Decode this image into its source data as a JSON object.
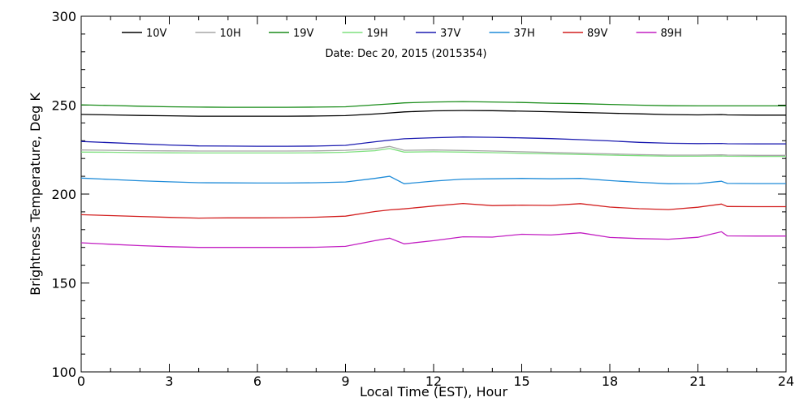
{
  "chart_data": {
    "type": "line",
    "annotation": "Date: Dec 20, 2015 (2015354)",
    "xlabel": "Local Time (EST), Hour",
    "ylabel": "Brightness Temperature, Deg K",
    "xlim": [
      0,
      24
    ],
    "ylim": [
      100,
      300
    ],
    "xticks": [
      "0",
      "3",
      "6",
      "9",
      "12",
      "15",
      "18",
      "21",
      "24"
    ],
    "yticks": [
      "100",
      "150",
      "200",
      "250",
      "300"
    ],
    "grid": false,
    "legend_position": "top",
    "x": [
      0,
      1,
      2,
      3,
      4,
      5,
      6,
      7,
      8,
      9,
      10,
      10.5,
      11,
      12,
      13,
      14,
      15,
      16,
      17,
      18,
      19,
      20,
      21,
      21.8,
      22,
      23,
      24
    ],
    "series": [
      {
        "name": "10V",
        "color": "#000000",
        "values": [
          244.8,
          244.5,
          244.2,
          244.0,
          243.8,
          243.8,
          243.8,
          243.8,
          243.9,
          244.1,
          245.0,
          245.6,
          246.2,
          246.8,
          247.0,
          246.9,
          246.6,
          246.3,
          245.9,
          245.5,
          245.1,
          244.7,
          244.5,
          244.7,
          244.5,
          244.4,
          244.4
        ]
      },
      {
        "name": "10H",
        "color": "#a6a6a6",
        "values": [
          224.8,
          224.6,
          224.4,
          224.3,
          224.2,
          224.2,
          224.2,
          224.2,
          224.3,
          224.6,
          225.5,
          226.8,
          224.6,
          224.8,
          224.5,
          224.2,
          223.8,
          223.4,
          223.0,
          222.6,
          222.2,
          221.9,
          221.9,
          222.1,
          221.9,
          221.8,
          221.8
        ]
      },
      {
        "name": "19V",
        "color": "#1a8c1a",
        "values": [
          250.2,
          249.8,
          249.4,
          249.1,
          248.9,
          248.8,
          248.8,
          248.8,
          248.9,
          249.1,
          250.2,
          250.7,
          251.3,
          251.8,
          252.0,
          251.8,
          251.5,
          251.1,
          250.8,
          250.4,
          250.0,
          249.7,
          249.6,
          249.6,
          249.6,
          249.6,
          249.6
        ]
      },
      {
        "name": "19H",
        "color": "#7fe07f",
        "values": [
          223.6,
          223.5,
          223.3,
          223.2,
          223.1,
          223.1,
          223.1,
          223.1,
          223.2,
          223.5,
          224.4,
          225.6,
          223.6,
          223.8,
          223.6,
          223.3,
          222.9,
          222.6,
          222.3,
          221.9,
          221.6,
          221.3,
          221.3,
          221.4,
          221.3,
          221.2,
          221.2
        ]
      },
      {
        "name": "37V",
        "color": "#1c1cb0",
        "values": [
          229.6,
          228.9,
          228.2,
          227.6,
          227.1,
          227.0,
          226.9,
          226.9,
          227.0,
          227.4,
          229.4,
          230.3,
          231.1,
          231.7,
          232.1,
          231.9,
          231.6,
          231.2,
          230.6,
          229.9,
          229.1,
          228.6,
          228.4,
          228.5,
          228.3,
          228.2,
          228.2
        ]
      },
      {
        "name": "37H",
        "color": "#1e8bd8",
        "values": [
          209.0,
          208.2,
          207.5,
          206.9,
          206.4,
          206.3,
          206.2,
          206.2,
          206.4,
          206.8,
          208.8,
          210.0,
          205.8,
          207.3,
          208.4,
          208.6,
          208.8,
          208.6,
          208.8,
          207.6,
          206.6,
          205.8,
          205.9,
          207.2,
          206.0,
          205.9,
          205.9
        ]
      },
      {
        "name": "89V",
        "color": "#d21e1e",
        "values": [
          188.4,
          187.9,
          187.4,
          186.9,
          186.5,
          186.6,
          186.6,
          186.7,
          187.0,
          187.6,
          190.2,
          191.1,
          191.7,
          193.3,
          194.7,
          193.5,
          193.8,
          193.6,
          194.6,
          192.7,
          191.8,
          191.3,
          192.6,
          194.4,
          193.0,
          192.9,
          192.9
        ]
      },
      {
        "name": "89H",
        "color": "#c21ec2",
        "values": [
          172.6,
          171.8,
          171.0,
          170.4,
          170.0,
          170.0,
          170.0,
          170.0,
          170.1,
          170.6,
          173.8,
          175.2,
          172.0,
          173.8,
          176.0,
          175.8,
          177.4,
          177.0,
          178.2,
          175.6,
          175.0,
          174.6,
          175.7,
          178.8,
          176.5,
          176.4,
          176.4
        ]
      }
    ]
  }
}
